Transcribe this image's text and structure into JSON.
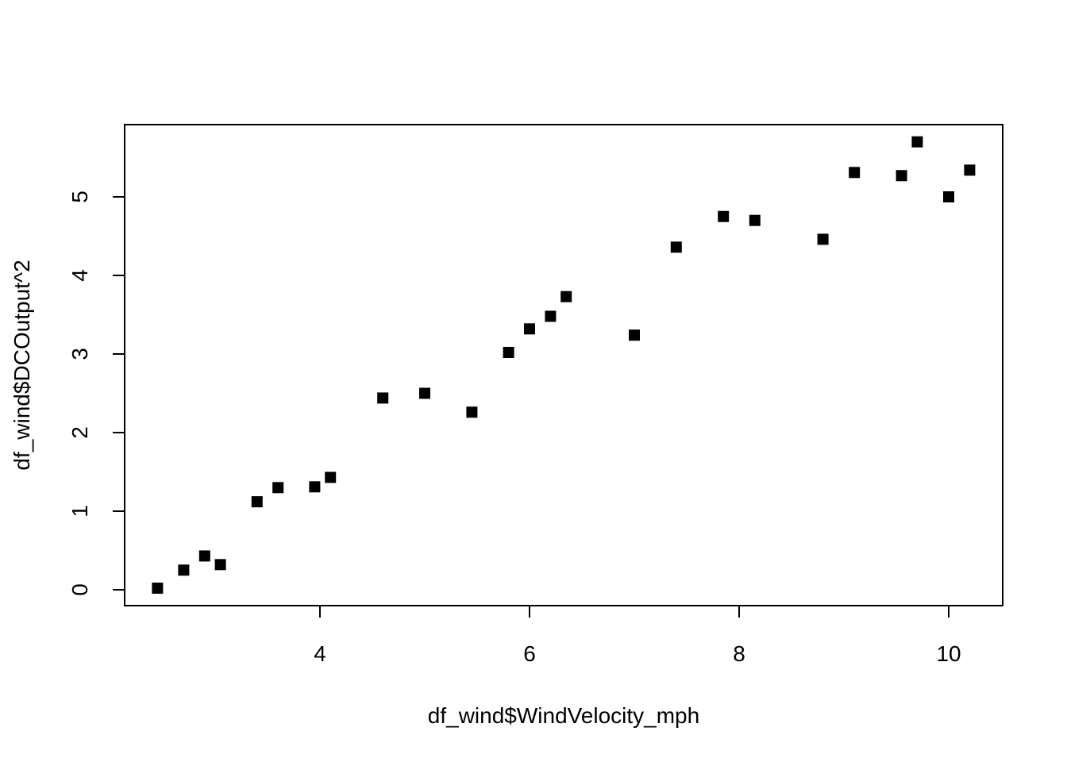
{
  "chart_data": {
    "type": "scatter",
    "xlabel": "df_wind$WindVelocity_mph",
    "ylabel": "df_wind$DCOutput^2",
    "xlim": [
      2.2,
      10.5
    ],
    "ylim": [
      -0.2,
      5.9
    ],
    "x_ticks": [
      4,
      6,
      8,
      10
    ],
    "y_ticks": [
      0,
      1,
      2,
      3,
      4,
      5
    ],
    "x_tick_labels": [
      "4",
      "6",
      "8",
      "10"
    ],
    "y_tick_labels": [
      "0",
      "1",
      "2",
      "3",
      "4",
      "5"
    ],
    "grid": false,
    "legend": "none",
    "marker": "filled-square",
    "point_color": "#000000",
    "x": [
      2.45,
      2.7,
      2.9,
      3.05,
      3.4,
      3.6,
      3.95,
      4.1,
      4.6,
      5.0,
      5.45,
      5.8,
      6.0,
      6.2,
      6.35,
      7.0,
      7.4,
      7.85,
      8.15,
      8.8,
      9.1,
      9.55,
      9.7,
      10.0,
      10.2
    ],
    "y": [
      0.02,
      0.25,
      0.43,
      0.32,
      1.12,
      1.3,
      1.31,
      1.43,
      2.44,
      2.5,
      2.26,
      3.02,
      3.32,
      3.48,
      3.73,
      3.24,
      4.36,
      4.75,
      4.7,
      4.46,
      5.31,
      5.27,
      5.7,
      5.0,
      5.34
    ]
  }
}
